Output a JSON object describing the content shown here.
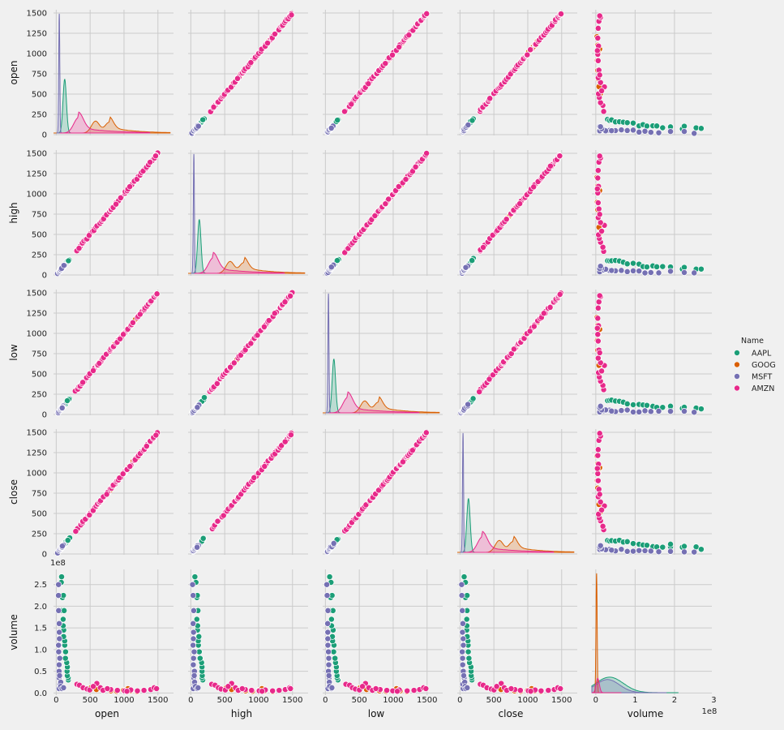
{
  "chart_data": {
    "type": "scatter",
    "subtype": "pairplot",
    "variables": [
      "open",
      "high",
      "low",
      "close",
      "volume"
    ],
    "axis_labels": {
      "open": "open",
      "high": "high",
      "low": "low",
      "close": "close",
      "volume": "volume"
    },
    "price_ticks": [
      0,
      250,
      500,
      750,
      1000,
      1250,
      1500
    ],
    "price_ticks_x": [
      0,
      500,
      1000,
      1500
    ],
    "price_range": [
      -10,
      1540
    ],
    "price_xrange": [
      -40,
      1730
    ],
    "volume_ticks_y": [
      0.0,
      0.5,
      1.0,
      1.5,
      2.0,
      2.5
    ],
    "volume_ticks_y_labels": [
      "0.0",
      "0.5",
      "1.0",
      "1.5",
      "2.0",
      "2.5"
    ],
    "volume_ticks_x": [
      0,
      1,
      2,
      3
    ],
    "volume_xrange_e8": [
      -0.1,
      2.95
    ],
    "volume_yrange_e8": [
      -0.05,
      2.85
    ],
    "volume_exponent_label": "1e8",
    "grid": true,
    "diagonal": "kde",
    "legend": {
      "title": "Name",
      "placement": "right",
      "entries": [
        {
          "name": "AAPL",
          "color": "#1b9e77"
        },
        {
          "name": "GOOG",
          "color": "#d95f02"
        },
        {
          "name": "MSFT",
          "color": "#7570b3"
        },
        {
          "name": "AMZN",
          "color": "#e7298a"
        }
      ]
    },
    "series": [
      {
        "name": "AAPL",
        "color": "#1b9e77",
        "price_points": [
          90,
          100,
          110,
          120,
          130,
          140,
          150,
          160,
          170,
          175,
          180
        ],
        "volume_points_e8": [
          [
            180,
            0.3
          ],
          [
            175,
            0.35
          ],
          [
            170,
            0.4
          ],
          [
            165,
            0.5
          ],
          [
            160,
            0.6
          ],
          [
            150,
            0.7
          ],
          [
            140,
            0.8
          ],
          [
            130,
            0.95
          ],
          [
            120,
            1.1
          ],
          [
            115,
            1.2
          ],
          [
            110,
            1.3
          ],
          [
            105,
            1.45
          ],
          [
            100,
            1.55
          ],
          [
            95,
            1.7
          ],
          [
            90,
            1.9
          ],
          [
            85,
            2.2
          ],
          [
            75,
            2.55
          ],
          [
            70,
            2.68
          ],
          [
            110,
            1.9
          ],
          [
            100,
            2.25
          ]
        ],
        "kde_price": {
          "peak": 125,
          "height": 0.45,
          "bw": 25
        },
        "kde_volume": {
          "peak": 0.35,
          "height": 0.13,
          "bw": 0.35
        }
      },
      {
        "name": "GOOG",
        "color": "#d95f02",
        "price_points": [
          550,
          600,
          650,
          700,
          750,
          800,
          850,
          900,
          950,
          1000,
          1050,
          1100,
          1150,
          1200
        ],
        "volume_points_e8": [
          [
            520,
            0.12
          ],
          [
            600,
            0.08
          ],
          [
            700,
            0.06
          ],
          [
            800,
            0.05
          ],
          [
            900,
            0.04
          ],
          [
            1000,
            0.06
          ],
          [
            1100,
            0.05
          ],
          [
            1200,
            0.03
          ],
          [
            1050,
            0.1
          ]
        ],
        "kde_price": {
          "peak": 580,
          "height": 0.1,
          "bw": 60,
          "second_peak": 780
        },
        "kde_volume": {
          "peak": 0.02,
          "height": 1.0,
          "bw": 0.015
        }
      },
      {
        "name": "MSFT",
        "color": "#7570b3",
        "price_points": [
          35,
          45,
          55,
          65,
          75,
          85,
          95,
          105
        ],
        "volume_points_e8": [
          [
            45,
            0.1
          ],
          [
            50,
            0.2
          ],
          [
            52,
            0.35
          ],
          [
            48,
            0.5
          ],
          [
            46,
            0.65
          ],
          [
            44,
            0.8
          ],
          [
            42,
            0.95
          ],
          [
            40,
            1.1
          ],
          [
            38,
            1.25
          ],
          [
            36,
            1.4
          ],
          [
            35,
            1.6
          ],
          [
            33,
            1.9
          ],
          [
            30,
            2.25
          ],
          [
            28,
            2.5
          ],
          [
            55,
            0.4
          ],
          [
            60,
            0.25
          ],
          [
            70,
            0.15
          ],
          [
            90,
            0.1
          ],
          [
            100,
            0.12
          ]
        ],
        "kde_price": {
          "peak": 45,
          "height": 1.0,
          "bw": 8
        },
        "kde_volume": {
          "peak": 0.3,
          "height": 0.11,
          "bw": 0.3
        }
      },
      {
        "name": "AMZN",
        "color": "#e7298a",
        "price_points": [
          300,
          350,
          400,
          450,
          500,
          550,
          600,
          650,
          700,
          750,
          800,
          850,
          900,
          950,
          1000,
          1050,
          1100,
          1150,
          1200,
          1250,
          1300,
          1350,
          1400,
          1450,
          1480
        ],
        "volume_points_e8": [
          [
            300,
            0.2
          ],
          [
            350,
            0.18
          ],
          [
            400,
            0.12
          ],
          [
            450,
            0.09
          ],
          [
            500,
            0.07
          ],
          [
            600,
            0.22
          ],
          [
            650,
            0.12
          ],
          [
            700,
            0.06
          ],
          [
            800,
            0.08
          ],
          [
            900,
            0.06
          ],
          [
            1000,
            0.05
          ],
          [
            1100,
            0.07
          ],
          [
            1200,
            0.05
          ],
          [
            1300,
            0.06
          ],
          [
            1400,
            0.08
          ],
          [
            1450,
            0.12
          ],
          [
            1480,
            0.1
          ],
          [
            550,
            0.15
          ],
          [
            750,
            0.1
          ],
          [
            1050,
            0.04
          ]
        ],
        "kde_price": {
          "peak": 330,
          "height": 0.13,
          "bw": 70
        },
        "kde_volume": {
          "peak": 0.05,
          "height": 0.12,
          "bw": 0.04
        }
      }
    ]
  }
}
